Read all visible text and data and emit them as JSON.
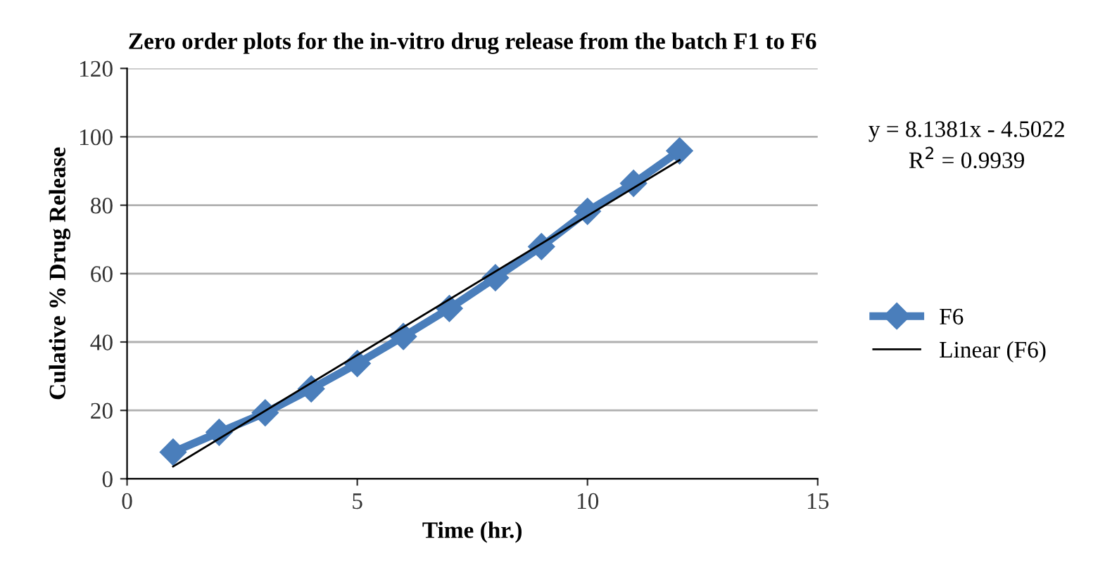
{
  "chart_data": {
    "type": "line",
    "title": "Zero order plots for the in-vitro drug release from the batch F1 to F6",
    "xlabel": "Time (hr.)",
    "ylabel": "Culative % Drug Release",
    "x": [
      1,
      2,
      3,
      4,
      5,
      6,
      7,
      8,
      9,
      10,
      11,
      12
    ],
    "series": [
      {
        "name": "F6",
        "color": "#4a7ebb",
        "marker": "diamond",
        "values": [
          7.8,
          13.6,
          19.3,
          26.3,
          33.7,
          41.6,
          49.8,
          58.8,
          67.9,
          78.2,
          86.4,
          95.9
        ]
      },
      {
        "name": "Linear (F6)",
        "color": "#000000",
        "marker": "none",
        "x": [
          1,
          12
        ],
        "values": [
          3.6,
          93.2
        ]
      }
    ],
    "annotations": [
      "y = 8.1381x - 4.5022",
      "R$^{2}$ = 0.9939"
    ],
    "xlim": [
      0,
      15
    ],
    "xticks": [
      0,
      5,
      10,
      15
    ],
    "ylim": [
      0,
      120
    ],
    "yticks": [
      0,
      20,
      40,
      60,
      80,
      100,
      120
    ],
    "grid": "y",
    "legend": "right",
    "line_style": "solid"
  }
}
